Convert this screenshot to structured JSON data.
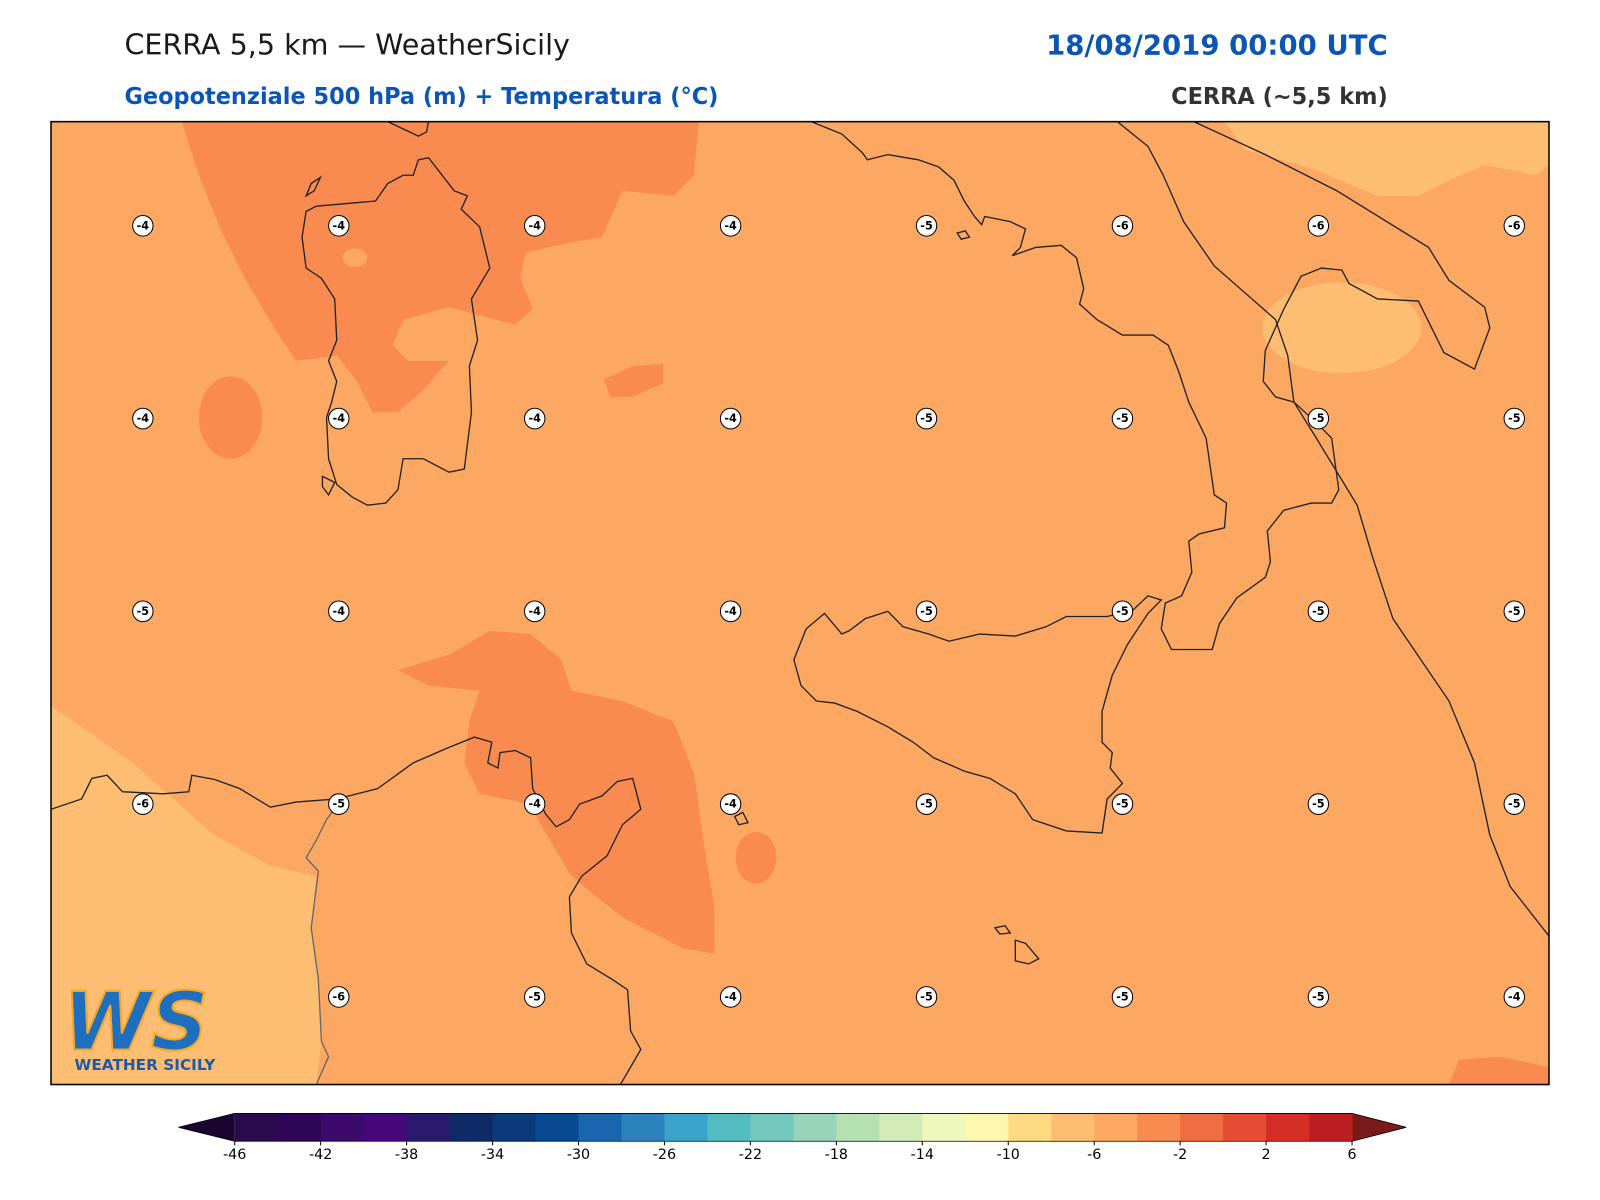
{
  "header": {
    "title": "CERRA 5,5 km — WeatherSicily",
    "datetime": "18/08/2019 00:00 UTC",
    "subtitle": "Geopotenziale 500 hPa (m) + Temperatura (°C)",
    "model": "CERRA (~5,5 km)"
  },
  "stations": {
    "rows": [
      [
        -4,
        -4,
        -4,
        -4,
        -5,
        -6,
        -6,
        -6
      ],
      [
        -4,
        -4,
        -4,
        -4,
        -5,
        -5,
        -5,
        -5
      ],
      [
        -5,
        -4,
        -4,
        -4,
        -5,
        -5,
        -5,
        -5
      ],
      [
        -6,
        -5,
        -4,
        -4,
        -5,
        -5,
        -5,
        -5
      ],
      [
        null,
        -6,
        -5,
        -4,
        -5,
        -5,
        -5,
        -4
      ]
    ]
  },
  "colorbar": {
    "lim": [
      -46,
      6
    ],
    "ticks": [
      -46,
      -42,
      -38,
      -34,
      -30,
      -26,
      -22,
      -18,
      -14,
      -10,
      -6,
      -2,
      2,
      6
    ],
    "colors": [
      "#2d0a4e",
      "#2f0556",
      "#3b0a6a",
      "#45077a",
      "#2a1a6e",
      "#0f2a66",
      "#0b3a7a",
      "#084a92",
      "#1a66ae",
      "#2b82bd",
      "#39a3c9",
      "#52bcc0",
      "#72c8bd",
      "#97d4b9",
      "#b5e0b2",
      "#d3ecb5",
      "#eef7bc",
      "#fff7b0",
      "#fedb82",
      "#fdbd72",
      "#fca862",
      "#f98b50",
      "#f06c43",
      "#e54d35",
      "#d42e27",
      "#bb1f22"
    ],
    "under": "#1a0530",
    "over": "#7a1a1a"
  },
  "logo": {
    "mark": "WS",
    "name": "WEATHER SICILY"
  }
}
